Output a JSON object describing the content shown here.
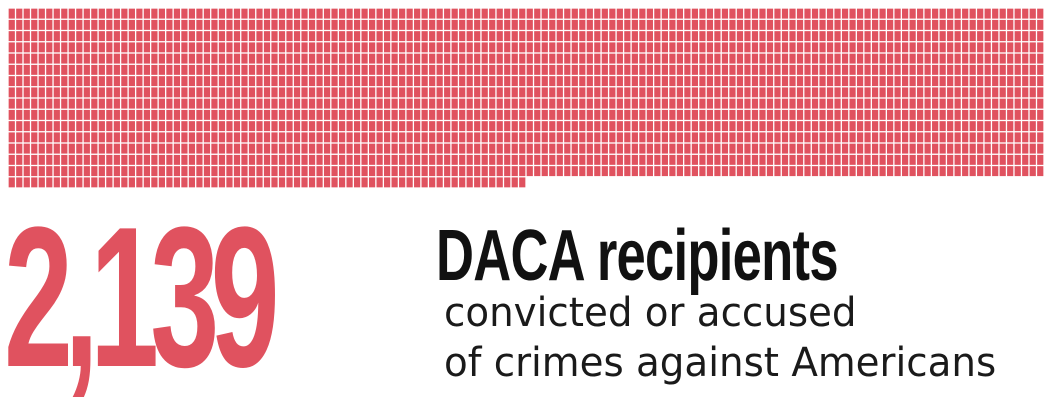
{
  "graphic": {
    "count": 2139,
    "color": "#e0525f",
    "grid_color": "#ffffff"
  },
  "big_number": "2,139",
  "headline": "DACA recipients",
  "subline_1": "convicted or accused",
  "subline_2": "of crimes against Americans"
}
